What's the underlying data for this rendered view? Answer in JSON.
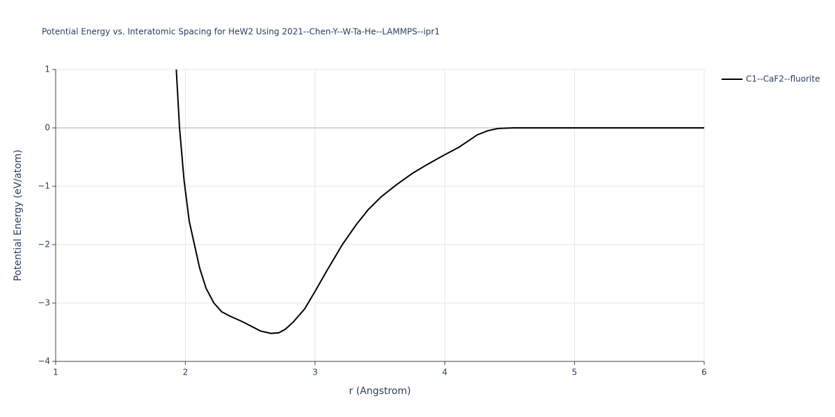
{
  "chart_data": {
    "type": "line",
    "title": "Potential Energy vs. Interatomic Spacing for HeW2 Using 2021--Chen-Y--W-Ta-He--LAMMPS--ipr1",
    "x_label": "r (Angstrom)",
    "y_label": "Potential Energy (eV/atom)",
    "xlim": [
      1,
      6
    ],
    "ylim": [
      -4,
      1
    ],
    "xticks": [
      1,
      2,
      3,
      4,
      5,
      6
    ],
    "yticks": [
      {
        "value": -4,
        "label": "−4"
      },
      {
        "value": -3,
        "label": "−3"
      },
      {
        "value": -2,
        "label": "−2"
      },
      {
        "value": -1,
        "label": "−1"
      },
      0,
      1
    ],
    "grid": true,
    "legend": "right",
    "x": [
      1.93,
      1.955,
      1.99,
      2.03,
      2.06,
      2.11,
      2.16,
      2.22,
      2.28,
      2.34,
      2.44,
      2.58,
      2.66,
      2.72,
      2.77,
      2.83,
      2.92,
      3.0,
      3.09,
      3.21,
      3.32,
      3.41,
      3.51,
      3.63,
      3.75,
      3.87,
      4.0,
      4.11,
      4.25,
      4.33,
      4.41,
      4.53,
      5.0,
      5.5,
      6.0
    ],
    "series": [
      {
        "name": "C1--CaF2--fluorite",
        "color": "#000000",
        "values": [
          1.0,
          0.0,
          -0.9,
          -1.6,
          -1.9,
          -2.4,
          -2.75,
          -3.0,
          -3.15,
          -3.22,
          -3.32,
          -3.48,
          -3.52,
          -3.51,
          -3.45,
          -3.33,
          -3.1,
          -2.8,
          -2.45,
          -2.0,
          -1.65,
          -1.4,
          -1.18,
          -0.97,
          -0.78,
          -0.62,
          -0.46,
          -0.33,
          -0.12,
          -0.05,
          -0.01,
          0.0,
          0.0,
          0.0,
          0.0
        ]
      }
    ]
  }
}
